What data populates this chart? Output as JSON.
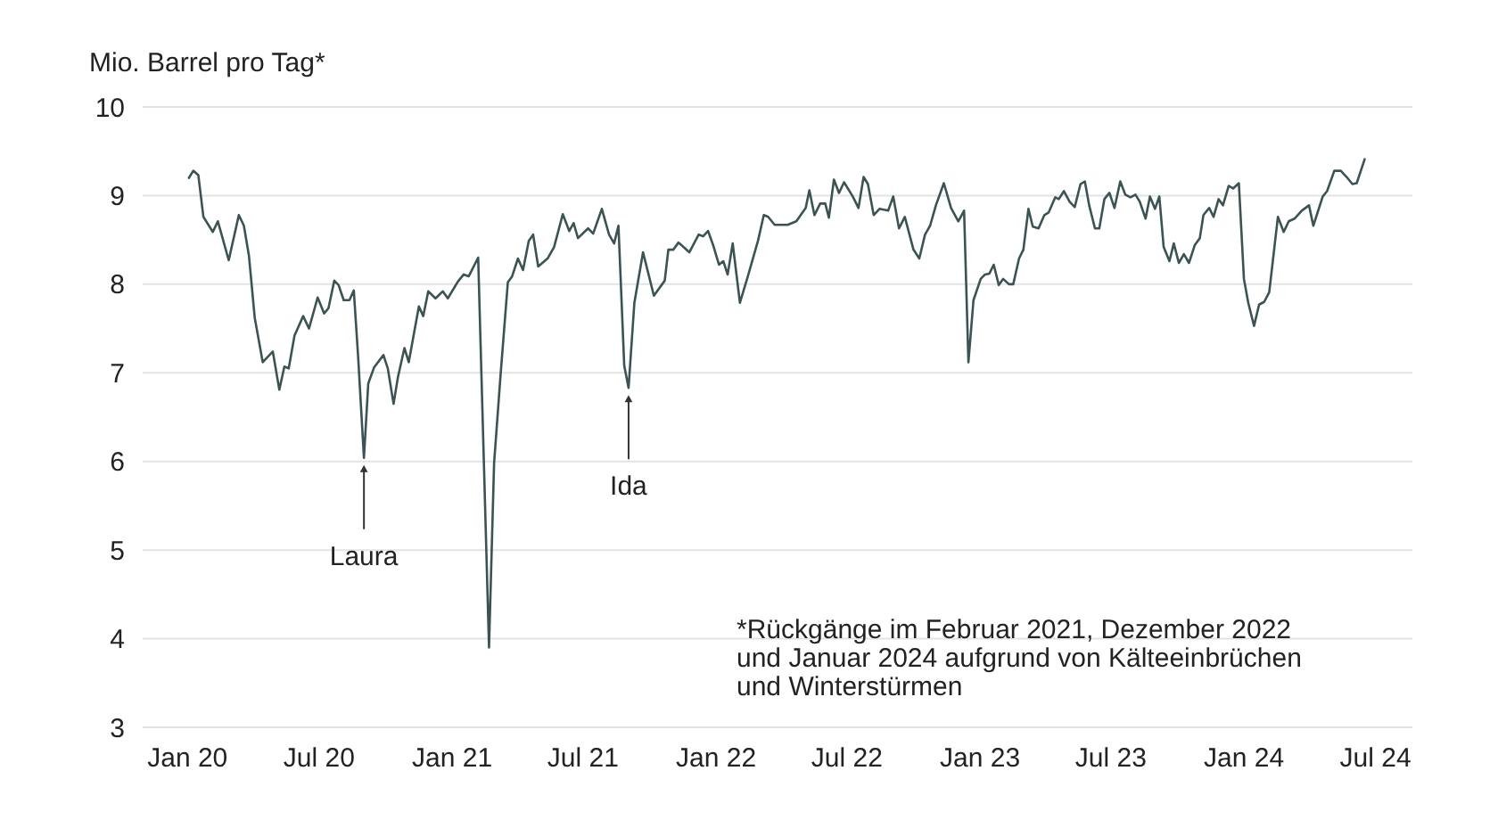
{
  "chart_data": {
    "type": "line",
    "ylabel": "Mio. Barrel pro Tag*",
    "xlim": [
      "2019-10-31",
      "2024-08-21"
    ],
    "xticks": [
      {
        "value": "2020-01-01",
        "label": "Jan 20"
      },
      {
        "value": "2020-07-01",
        "label": "Jul 20"
      },
      {
        "value": "2021-01-01",
        "label": "Jan 21"
      },
      {
        "value": "2021-07-01",
        "label": "Jul 21"
      },
      {
        "value": "2022-01-01",
        "label": "Jan 22"
      },
      {
        "value": "2022-07-01",
        "label": "Jul 22"
      },
      {
        "value": "2023-01-01",
        "label": "Jan 23"
      },
      {
        "value": "2023-07-01",
        "label": "Jul 23"
      },
      {
        "value": "2024-01-01",
        "label": "Jan 24"
      },
      {
        "value": "2024-07-01",
        "label": "Jul 24"
      }
    ],
    "ylim": [
      3,
      10
    ],
    "yticks": [
      3,
      4,
      5,
      6,
      7,
      8,
      9,
      10
    ],
    "grid": "y",
    "marker": "none",
    "line_style": "solid",
    "x": [
      "2020-01-03",
      "2020-01-09",
      "2020-01-16",
      "2020-01-23",
      "2020-02-05",
      "2020-02-12",
      "2020-02-27",
      "2020-03-12",
      "2020-03-19",
      "2020-03-26",
      "2020-04-03",
      "2020-04-14",
      "2020-04-28",
      "2020-05-07",
      "2020-05-14",
      "2020-05-20",
      "2020-05-28",
      "2020-06-09",
      "2020-06-17",
      "2020-06-29",
      "2020-07-08",
      "2020-07-14",
      "2020-07-22",
      "2020-07-28",
      "2020-08-04",
      "2020-08-12",
      "2020-08-18",
      "2020-08-24",
      "2020-09-01",
      "2020-09-07",
      "2020-09-15",
      "2020-09-28",
      "2020-10-04",
      "2020-10-12",
      "2020-10-18",
      "2020-10-27",
      "2020-11-02",
      "2020-11-16",
      "2020-11-22",
      "2020-11-29",
      "2020-12-09",
      "2020-12-19",
      "2020-12-26",
      "2021-01-09",
      "2021-01-17",
      "2021-01-24",
      "2021-02-06",
      "2021-02-21",
      "2021-02-28",
      "2021-03-09",
      "2021-03-19",
      "2021-03-25",
      "2021-04-02",
      "2021-04-09",
      "2021-04-17",
      "2021-04-23",
      "2021-04-30",
      "2021-05-13",
      "2021-05-22",
      "2021-06-03",
      "2021-06-12",
      "2021-06-18",
      "2021-06-24",
      "2021-07-08",
      "2021-07-15",
      "2021-07-27",
      "2021-08-06",
      "2021-08-13",
      "2021-08-19",
      "2021-08-27",
      "2021-09-02",
      "2021-09-10",
      "2021-09-22",
      "2021-10-07",
      "2021-10-22",
      "2021-10-27",
      "2021-11-03",
      "2021-11-10",
      "2021-11-25",
      "2021-12-08",
      "2021-12-14",
      "2021-12-21",
      "2021-12-28",
      "2022-01-05",
      "2022-01-11",
      "2022-01-17",
      "2022-01-24",
      "2022-02-03",
      "2022-02-14",
      "2022-02-28",
      "2022-03-08",
      "2022-03-14",
      "2022-03-23",
      "2022-04-10",
      "2022-04-22",
      "2022-05-05",
      "2022-05-10",
      "2022-05-17",
      "2022-05-25",
      "2022-06-01",
      "2022-06-06",
      "2022-06-13",
      "2022-06-20",
      "2022-06-27",
      "2022-07-09",
      "2022-07-17",
      "2022-07-24",
      "2022-07-30",
      "2022-08-07",
      "2022-08-15",
      "2022-08-27",
      "2022-09-03",
      "2022-09-11",
      "2022-09-19",
      "2022-10-01",
      "2022-10-09",
      "2022-10-17",
      "2022-10-24",
      "2022-11-01",
      "2022-11-12",
      "2022-11-22",
      "2022-12-02",
      "2022-12-10",
      "2022-12-16",
      "2022-12-23",
      "2023-01-02",
      "2023-01-08",
      "2023-01-14",
      "2023-01-20",
      "2023-01-27",
      "2023-02-02",
      "2023-02-10",
      "2023-02-16",
      "2023-02-24",
      "2023-03-02",
      "2023-03-09",
      "2023-03-15",
      "2023-03-23",
      "2023-03-31",
      "2023-04-06",
      "2023-04-15",
      "2023-04-20",
      "2023-04-27",
      "2023-05-05",
      "2023-05-12",
      "2023-05-20",
      "2023-05-26",
      "2023-06-01",
      "2023-06-09",
      "2023-06-15",
      "2023-06-22",
      "2023-06-29",
      "2023-07-06",
      "2023-07-14",
      "2023-07-21",
      "2023-07-28",
      "2023-08-04",
      "2023-08-10",
      "2023-08-18",
      "2023-08-24",
      "2023-08-31",
      "2023-09-06",
      "2023-09-12",
      "2023-09-20",
      "2023-09-26",
      "2023-10-03",
      "2023-10-10",
      "2023-10-17",
      "2023-10-25",
      "2023-11-01",
      "2023-11-06",
      "2023-11-14",
      "2023-11-20",
      "2023-11-27",
      "2023-12-03",
      "2023-12-11",
      "2023-12-17",
      "2023-12-25",
      "2024-01-01",
      "2024-01-07",
      "2024-01-15",
      "2024-01-22",
      "2024-01-29",
      "2024-02-05",
      "2024-02-17",
      "2024-02-25",
      "2024-03-03",
      "2024-03-11",
      "2024-03-21",
      "2024-03-31",
      "2024-04-06",
      "2024-04-19",
      "2024-04-25",
      "2024-05-05",
      "2024-05-14",
      "2024-05-22",
      "2024-05-30",
      "2024-06-05",
      "2024-06-16"
    ],
    "series": [
      {
        "color": "#3b5353",
        "values": [
          9.2,
          9.28,
          9.23,
          8.76,
          8.59,
          8.71,
          8.27,
          8.78,
          8.66,
          8.32,
          7.62,
          7.12,
          7.24,
          6.81,
          7.07,
          7.05,
          7.42,
          7.64,
          7.5,
          7.85,
          7.67,
          7.73,
          8.04,
          7.99,
          7.82,
          7.82,
          7.93,
          7.18,
          6.04,
          6.88,
          7.06,
          7.2,
          7.05,
          6.65,
          6.95,
          7.28,
          7.12,
          7.75,
          7.64,
          7.92,
          7.84,
          7.92,
          7.84,
          8.03,
          8.11,
          8.09,
          8.3,
          3.9,
          5.98,
          6.98,
          8.02,
          8.09,
          8.29,
          8.16,
          8.49,
          8.56,
          8.2,
          8.29,
          8.42,
          8.79,
          8.6,
          8.69,
          8.52,
          8.63,
          8.57,
          8.85,
          8.56,
          8.46,
          8.66,
          7.08,
          6.83,
          7.79,
          8.36,
          7.87,
          8.04,
          8.39,
          8.39,
          8.47,
          8.36,
          8.56,
          8.54,
          8.6,
          8.44,
          8.22,
          8.26,
          8.11,
          8.46,
          7.79,
          8.09,
          8.49,
          8.78,
          8.76,
          8.67,
          8.67,
          8.71,
          8.86,
          9.06,
          8.78,
          8.91,
          8.91,
          8.75,
          9.18,
          9.03,
          9.15,
          8.99,
          8.86,
          9.21,
          9.13,
          8.78,
          8.85,
          8.83,
          8.99,
          8.63,
          8.76,
          8.39,
          8.29,
          8.56,
          8.66,
          8.89,
          9.14,
          8.86,
          8.71,
          8.83,
          7.12,
          7.82,
          8.06,
          8.11,
          8.12,
          8.22,
          7.99,
          8.06,
          8.0,
          8.0,
          8.29,
          8.39,
          8.85,
          8.65,
          8.63,
          8.78,
          8.81,
          8.98,
          8.96,
          9.05,
          8.93,
          8.87,
          9.13,
          9.16,
          8.89,
          8.63,
          8.63,
          8.96,
          9.03,
          8.86,
          9.16,
          9.01,
          8.98,
          9.01,
          8.93,
          8.74,
          8.99,
          8.85,
          8.99,
          8.42,
          8.26,
          8.46,
          8.24,
          8.34,
          8.24,
          8.44,
          8.52,
          8.78,
          8.86,
          8.76,
          8.96,
          8.89,
          9.11,
          9.08,
          9.14,
          8.06,
          7.79,
          7.53,
          7.77,
          7.8,
          7.91,
          8.76,
          8.59,
          8.71,
          8.74,
          8.83,
          8.89,
          8.66,
          8.99,
          9.05,
          9.28,
          9.28,
          9.21,
          9.13,
          9.14,
          9.41
        ]
      }
    ],
    "annotations": [
      {
        "text": "Laura",
        "x": "2020-09-01",
        "y": 6.04
      },
      {
        "text": "Ida",
        "x": "2021-09-02",
        "y": 6.83
      },
      "*Rückgänge im Februar 2021, Dezember 2022 und Januar 2024 aufgrund von Kälteeinbrüchen und Winterstürmen"
    ]
  }
}
